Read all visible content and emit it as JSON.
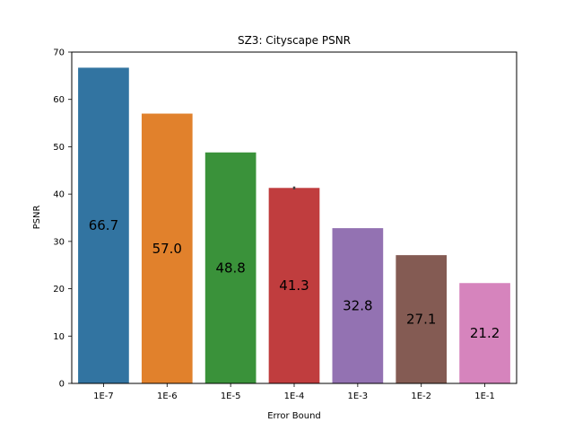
{
  "chart_data": {
    "type": "bar",
    "title": "SZ3: Cityscape PSNR",
    "xlabel": "Error Bound",
    "ylabel": "PSNR",
    "categories": [
      "1E-7",
      "1E-6",
      "1E-5",
      "1E-4",
      "1E-3",
      "1E-2",
      "1E-1"
    ],
    "values": [
      66.7,
      57.0,
      48.8,
      41.3,
      32.8,
      27.1,
      21.2
    ],
    "value_labels": [
      "66.7",
      "57.0",
      "48.8",
      "41.3",
      "32.8",
      "27.1",
      "21.2"
    ],
    "colors": [
      "#3274a1",
      "#e1812c",
      "#3a923a",
      "#c03d3e",
      "#9372b2",
      "#845b53",
      "#d684bd"
    ],
    "ylim": [
      0,
      70
    ],
    "yticks": [
      0,
      10,
      20,
      30,
      40,
      50,
      60,
      70
    ],
    "grid": false,
    "legend": "none",
    "error_bars": [
      null,
      null,
      null,
      0.3,
      null,
      null,
      null
    ]
  }
}
